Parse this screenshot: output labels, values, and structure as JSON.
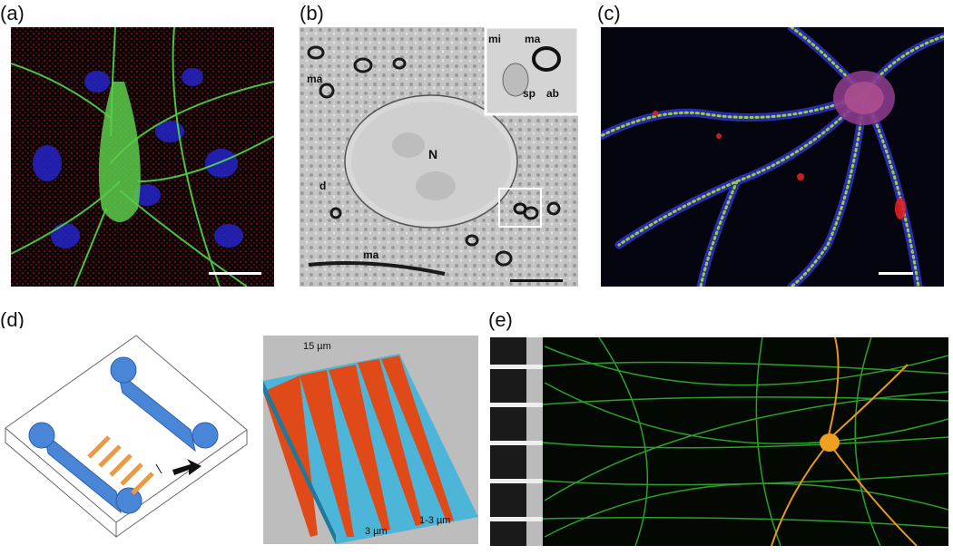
{
  "panel_labels": {
    "a": "(a)",
    "b": "(b)",
    "c": "(c)",
    "d": "(d)",
    "e": "(e)"
  },
  "panel_b_labels": {
    "nucleus": "N",
    "ma_top": "ma",
    "ma_bottom": "ma",
    "dendrite": "d",
    "inset_mi": "mi",
    "inset_ma": "ma",
    "inset_sp": "sp",
    "inset_ab": "ab"
  },
  "panel_d_labels": {
    "width_top": "15 µm",
    "width_bottom": "3 µm",
    "height": "1-3 µm"
  },
  "colors": {
    "fluor_green": "#3fcf3a",
    "fluor_red": "#d02020",
    "fluor_blue": "#2a2ad0",
    "device_blue": "#4a86d8",
    "channel_orange": "#e8a04a",
    "neuron_orange": "#f0a020"
  }
}
